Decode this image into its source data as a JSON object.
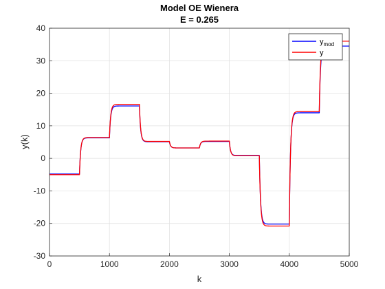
{
  "chart_data": {
    "type": "line",
    "title": "Model OE Wienera",
    "subtitle": "E = 0.265",
    "xlabel": "k",
    "ylabel": "y(k)",
    "xlim": [
      0,
      5000
    ],
    "ylim": [
      -30,
      40
    ],
    "xticks": [
      "0",
      "1000",
      "2000",
      "3000",
      "4000",
      "5000"
    ],
    "yticks": [
      "-30",
      "-20",
      "-10",
      "0",
      "10",
      "20",
      "30",
      "40"
    ],
    "grid": true,
    "legend_position": "top-right",
    "legend": [
      {
        "main": "y",
        "sub": "mod"
      },
      {
        "main": "y",
        "sub": ""
      }
    ],
    "series": [
      {
        "name": "y_mod",
        "color": "#0000ff",
        "steps": [
          {
            "k": 0,
            "value": -4.8
          },
          {
            "k": 500,
            "value": 6.3
          },
          {
            "k": 1000,
            "value": 16.1
          },
          {
            "k": 1500,
            "value": 5.1
          },
          {
            "k": 2000,
            "value": 3.2
          },
          {
            "k": 2500,
            "value": 5.2
          },
          {
            "k": 3000,
            "value": 0.9
          },
          {
            "k": 3500,
            "value": -20.2
          },
          {
            "k": 4000,
            "value": 14.0
          },
          {
            "k": 4500,
            "value": 34.5
          }
        ],
        "k_end": 5000
      },
      {
        "name": "y",
        "color": "#ff0000",
        "steps": [
          {
            "k": 0,
            "value": -5.0
          },
          {
            "k": 500,
            "value": 6.4
          },
          {
            "k": 1000,
            "value": 16.6
          },
          {
            "k": 1500,
            "value": 5.2
          },
          {
            "k": 2000,
            "value": 3.2
          },
          {
            "k": 2500,
            "value": 5.3
          },
          {
            "k": 3000,
            "value": 0.8
          },
          {
            "k": 3500,
            "value": -20.8
          },
          {
            "k": 4000,
            "value": 14.4
          },
          {
            "k": 4500,
            "value": 36.0
          }
        ],
        "k_end": 5000
      }
    ]
  }
}
